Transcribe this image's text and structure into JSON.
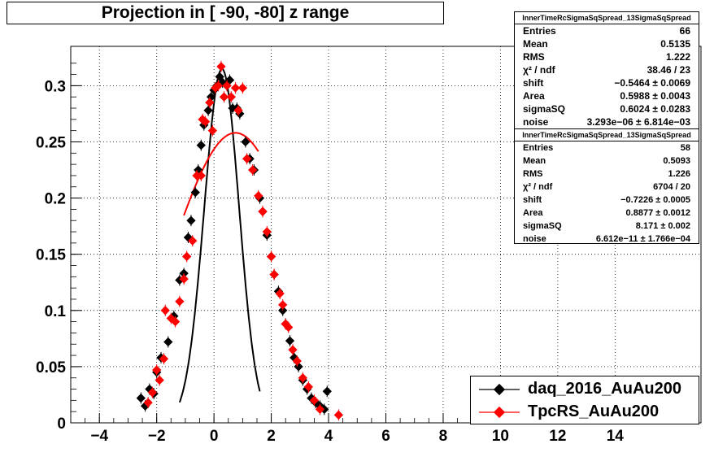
{
  "title": "Projection in [ -90, -80] z range",
  "chart_data": {
    "type": "scatter",
    "title": "Projection in [ -90, -80] z range",
    "xlim": [
      -5,
      17
    ],
    "ylim": [
      0,
      0.335
    ],
    "x_ticks": [
      "−4",
      "−2",
      "0",
      "2",
      "4",
      "6",
      "8",
      "10",
      "12",
      "14"
    ],
    "x_tick_values": [
      -4,
      -2,
      0,
      2,
      4,
      6,
      8,
      10,
      12,
      14
    ],
    "y_ticks": [
      "0",
      "0.05",
      "0.1",
      "0.15",
      "0.2",
      "0.25",
      "0.3"
    ],
    "y_tick_values": [
      0,
      0.05,
      0.1,
      0.15,
      0.2,
      0.25,
      0.3
    ],
    "grid": true,
    "series": [
      {
        "name": "daq_2016_AuAu200",
        "color": "#000000",
        "points": [
          [
            -2.55,
            0.022
          ],
          [
            -2.4,
            0.015
          ],
          [
            -2.25,
            0.03
          ],
          [
            -2.1,
            0.026
          ],
          [
            -2.0,
            0.045
          ],
          [
            -1.85,
            0.058
          ],
          [
            -1.6,
            0.072
          ],
          [
            -1.4,
            0.095
          ],
          [
            -1.2,
            0.127
          ],
          [
            -1.05,
            0.133
          ],
          [
            -0.9,
            0.165
          ],
          [
            -0.8,
            0.18
          ],
          [
            -0.65,
            0.205
          ],
          [
            -0.55,
            0.225
          ],
          [
            -0.45,
            0.247
          ],
          [
            -0.35,
            0.265
          ],
          [
            -0.2,
            0.278
          ],
          [
            -0.1,
            0.29
          ],
          [
            0.0,
            0.296
          ],
          [
            0.1,
            0.3
          ],
          [
            0.2,
            0.308
          ],
          [
            0.3,
            0.303
          ],
          [
            0.45,
            0.3
          ],
          [
            0.55,
            0.305
          ],
          [
            0.65,
            0.28
          ],
          [
            0.8,
            0.28
          ],
          [
            0.9,
            0.275
          ],
          [
            1.1,
            0.25
          ],
          [
            1.25,
            0.235
          ],
          [
            1.4,
            0.225
          ],
          [
            1.6,
            0.2
          ],
          [
            1.7,
            0.188
          ],
          [
            1.85,
            0.167
          ],
          [
            2.0,
            0.148
          ],
          [
            2.1,
            0.132
          ],
          [
            2.25,
            0.117
          ],
          [
            2.4,
            0.1
          ],
          [
            2.5,
            0.088
          ],
          [
            2.65,
            0.073
          ],
          [
            2.8,
            0.058
          ],
          [
            2.95,
            0.05
          ],
          [
            3.1,
            0.038
          ],
          [
            3.25,
            0.03
          ],
          [
            3.4,
            0.022
          ],
          [
            3.55,
            0.018
          ],
          [
            3.7,
            0.015
          ],
          [
            3.85,
            0.012
          ],
          [
            3.95,
            0.028
          ]
        ]
      },
      {
        "name": "TpcRS_AuAu200",
        "color": "#ff0000",
        "points": [
          [
            -2.3,
            0.018
          ],
          [
            -2.15,
            0.027
          ],
          [
            -2.0,
            0.047
          ],
          [
            -1.9,
            0.038
          ],
          [
            -1.75,
            0.057
          ],
          [
            -1.7,
            0.1
          ],
          [
            -1.5,
            0.093
          ],
          [
            -1.35,
            0.09
          ],
          [
            -1.2,
            0.108
          ],
          [
            -1.05,
            0.128
          ],
          [
            -0.95,
            0.148
          ],
          [
            -0.75,
            0.162
          ],
          [
            -0.6,
            0.22
          ],
          [
            -0.45,
            0.22
          ],
          [
            -0.4,
            0.27
          ],
          [
            -0.3,
            0.268
          ],
          [
            -0.15,
            0.285
          ],
          [
            -0.05,
            0.26
          ],
          [
            0.05,
            0.298
          ],
          [
            0.15,
            0.3
          ],
          [
            0.25,
            0.317
          ],
          [
            0.35,
            0.29
          ],
          [
            0.45,
            0.3
          ],
          [
            0.6,
            0.29
          ],
          [
            0.75,
            0.298
          ],
          [
            0.85,
            0.278
          ],
          [
            1.0,
            0.298
          ],
          [
            1.15,
            0.235
          ],
          [
            1.35,
            0.225
          ],
          [
            1.55,
            0.202
          ],
          [
            1.7,
            0.188
          ],
          [
            1.85,
            0.17
          ],
          [
            2.0,
            0.148
          ],
          [
            2.1,
            0.132
          ],
          [
            2.3,
            0.115
          ],
          [
            2.4,
            0.105
          ],
          [
            2.5,
            0.088
          ],
          [
            2.6,
            0.085
          ],
          [
            2.75,
            0.065
          ],
          [
            2.9,
            0.055
          ],
          [
            3.1,
            0.04
          ],
          [
            3.3,
            0.032
          ],
          [
            3.5,
            0.02
          ],
          [
            3.7,
            0.012
          ],
          [
            4.35,
            0.007
          ]
        ]
      }
    ],
    "fits": [
      {
        "series": "daq_2016_AuAu200",
        "color": "#000000",
        "shape": "gaussian",
        "center": 0.28,
        "peak": 0.315,
        "sigma_left": 0.62,
        "sigma_right": 0.6,
        "x_range": [
          -1.2,
          1.6
        ]
      },
      {
        "series": "TpcRS_AuAu200",
        "color": "#ff0000",
        "shape": "gaussian",
        "center": 0.75,
        "peak": 0.258,
        "sigma": 2.2,
        "x_range": [
          -1.05,
          1.55
        ]
      }
    ]
  },
  "stats_boxes": [
    {
      "header": "InnerTimeRcSigmaSqSpread_13SigmaSqSpread",
      "rows": [
        {
          "label": "Entries",
          "value": "66"
        },
        {
          "label": "Mean",
          "value": "0.5135"
        },
        {
          "label": "RMS",
          "value": "1.222"
        },
        {
          "label": "χ² / ndf",
          "value": "38.46 / 23"
        },
        {
          "label": "shift",
          "value": "−0.5464 ± 0.0069"
        },
        {
          "label": "Area",
          "value": "0.5988 ± 0.0043"
        },
        {
          "label": "sigmaSQ",
          "value": "0.6024 ± 0.0283"
        },
        {
          "label": "noise",
          "value": "3.293e−06 ± 6.814e−03"
        }
      ]
    },
    {
      "header": "InnerTimeRcSigmaSqSpread_13SigmaSqSpread",
      "rows": [
        {
          "label": "Entries",
          "value": "58"
        },
        {
          "label": "Mean",
          "value": "0.5093"
        },
        {
          "label": "RMS",
          "value": "1.226"
        },
        {
          "label": "χ² / ndf",
          "value": "6704 / 20"
        },
        {
          "label": "shift",
          "value": "−0.7226 ± 0.0005"
        },
        {
          "label": "Area",
          "value": "0.8877 ± 0.0012"
        },
        {
          "label": "sigmaSQ",
          "value": "8.171 ± 0.002"
        },
        {
          "label": "noise",
          "value": "6.612e−11 ± 1.766e−04"
        }
      ]
    }
  ],
  "legend": {
    "entries": [
      {
        "label": "daq_2016_AuAu200",
        "color": "#000000"
      },
      {
        "label": "TpcRS_AuAu200",
        "color": "#ff0000"
      }
    ]
  }
}
